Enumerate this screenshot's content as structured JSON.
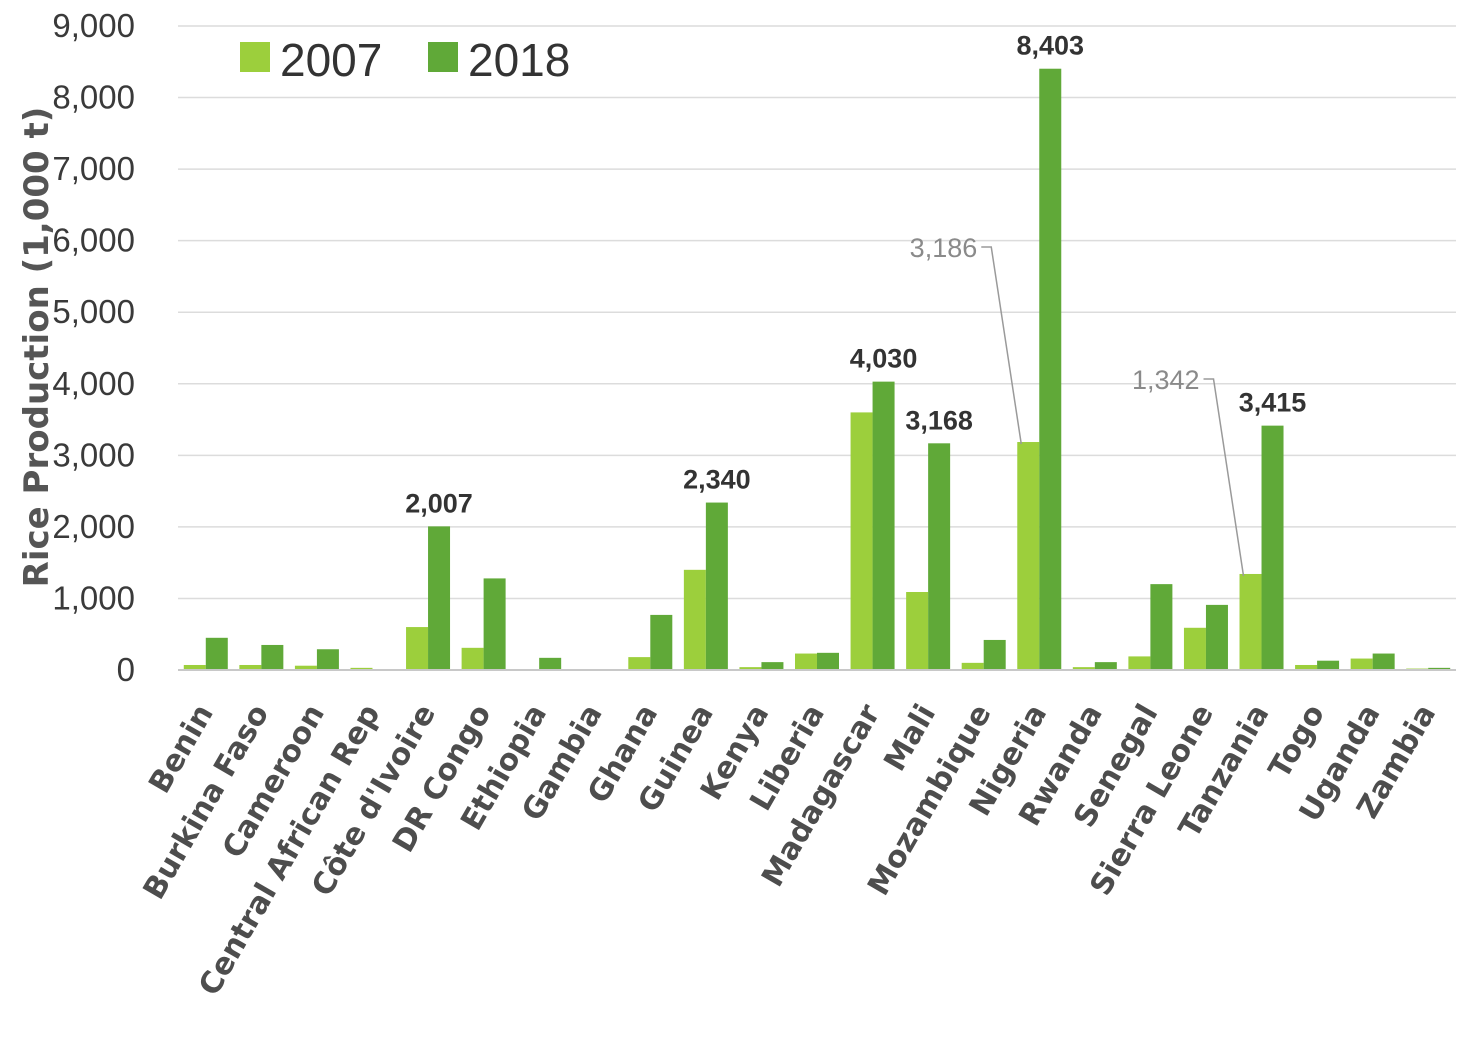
{
  "chart_data": {
    "type": "bar",
    "ylabel": "Rice Production (1,000 t)",
    "xlabel": "",
    "ylim": [
      0,
      9000
    ],
    "yticks": [
      0,
      1000,
      2000,
      3000,
      4000,
      5000,
      6000,
      7000,
      8000,
      9000
    ],
    "ytick_labels": [
      "0",
      "1,000",
      "2,000",
      "3,000",
      "4,000",
      "5,000",
      "6,000",
      "7,000",
      "8,000",
      "9,000"
    ],
    "grid": true,
    "legend_position": "top-left",
    "categories": [
      "Benin",
      "Burkina Faso",
      "Cameroon",
      "Central African Rep",
      "Côte d'Ivoire",
      "DR Congo",
      "Ethiopia",
      "Gambia",
      "Ghana",
      "Guinea",
      "Kenya",
      "Liberia",
      "Madagascar",
      "Mali",
      "Mozambique",
      "Nigeria",
      "Rwanda",
      "Senegal",
      "Sierra Leone",
      "Tanzania",
      "Togo",
      "Uganda",
      "Zambia"
    ],
    "series": [
      {
        "name": "2007",
        "color": "#9ccf3c",
        "values": [
          70,
          70,
          60,
          30,
          600,
          310,
          10,
          0,
          180,
          1400,
          40,
          230,
          3600,
          1090,
          100,
          3186,
          40,
          190,
          590,
          1342,
          70,
          160,
          20
        ]
      },
      {
        "name": "2018",
        "color": "#60a938",
        "values": [
          450,
          350,
          290,
          0,
          2007,
          1280,
          170,
          0,
          770,
          2340,
          110,
          240,
          4030,
          3168,
          420,
          8403,
          110,
          1200,
          910,
          3415,
          130,
          230,
          30
        ]
      }
    ],
    "data_labels": [
      {
        "series": 1,
        "category": "Côte d'Ivoire",
        "text": "2,007",
        "style": "bold"
      },
      {
        "series": 1,
        "category": "Guinea",
        "text": "2,340",
        "style": "bold"
      },
      {
        "series": 1,
        "category": "Madagascar",
        "text": "4,030",
        "style": "bold"
      },
      {
        "series": 1,
        "category": "Mali",
        "text": "3,168",
        "style": "bold"
      },
      {
        "series": 1,
        "category": "Nigeria",
        "text": "8,403",
        "style": "bold"
      },
      {
        "series": 1,
        "category": "Tanzania",
        "text": "3,415",
        "style": "bold"
      },
      {
        "series": 0,
        "category": "Nigeria",
        "text": "3,186",
        "style": "callout"
      },
      {
        "series": 0,
        "category": "Tanzania",
        "text": "1,342",
        "style": "callout"
      }
    ]
  }
}
